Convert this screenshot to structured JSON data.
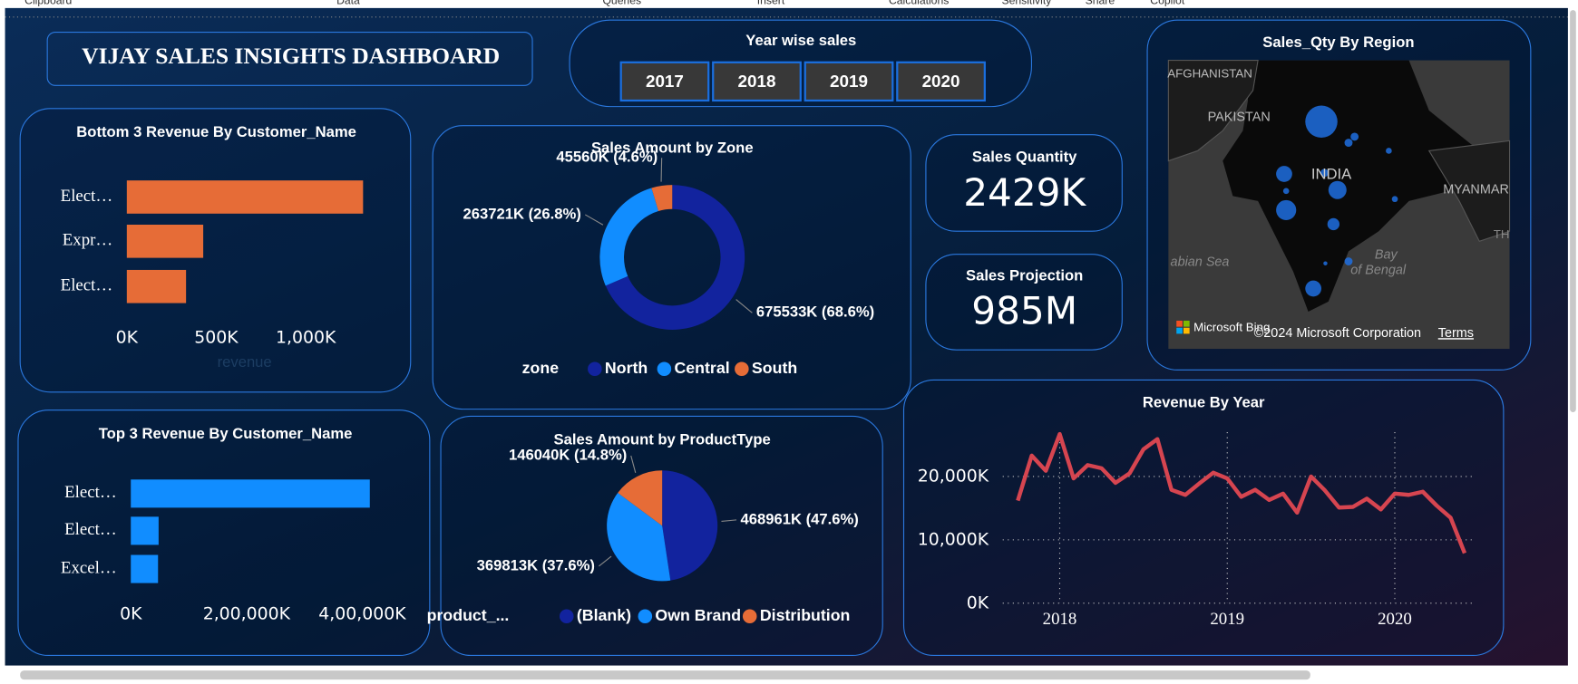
{
  "ribbon": [
    "Clipboard",
    "Data",
    "Queries",
    "Insert",
    "Calculations",
    "Sensitivity",
    "Share",
    "Copilot"
  ],
  "header": {
    "title": "VIJAY SALES INSIGHTS DASHBOARD"
  },
  "slicer": {
    "title": "Year wise sales",
    "items": [
      "2017",
      "2018",
      "2019",
      "2020"
    ]
  },
  "cards": [
    {
      "title": "Sales Quantity",
      "value": "2429K"
    },
    {
      "title": "Sales Projection",
      "value": "985M"
    }
  ],
  "map": {
    "title": "Sales_Qty By Region",
    "labels": [
      "AFGHANISTAN",
      "PAKISTAN",
      "INDIA",
      "MYANMAR",
      "abian Sea",
      "Bay",
      "of Bengal",
      "TH"
    ],
    "attribution": "Microsoft Bing",
    "copyright": "©2024 Microsoft Corporation",
    "terms": "Terms"
  },
  "chart_data": [
    {
      "type": "bar",
      "orientation": "horizontal",
      "title": "Bottom 3 Revenue By Customer_Name",
      "x_label": "revenue",
      "categories": [
        "Elect…",
        "Expr…",
        "Elect…"
      ],
      "values": [
        1320,
        427,
        331
      ],
      "color": "#e66c37",
      "xlim": [
        0,
        1400
      ],
      "xticks": [
        {
          "value": 0,
          "label": "0K"
        },
        {
          "value": 500,
          "label": "500K"
        },
        {
          "value": 1000,
          "label": "1,000K"
        }
      ]
    },
    {
      "type": "bar",
      "orientation": "horizontal",
      "title": "Top 3 Revenue By Customer_Name",
      "categories": [
        "Elect…",
        "Elect…",
        "Excel…"
      ],
      "values": [
        413000,
        48000,
        47000
      ],
      "color": "#118dff",
      "xlim": [
        0,
        420000
      ],
      "xticks": [
        {
          "value": 0,
          "label": "0K"
        },
        {
          "value": 200000,
          "label": "2,00,000K"
        },
        {
          "value": 400000,
          "label": "4,00,000K"
        }
      ]
    },
    {
      "type": "donut",
      "title": "Sales Amount by Zone",
      "legend_title": "zone",
      "categories": [
        "North",
        "Central",
        "South"
      ],
      "values": [
        675533,
        263721,
        45560
      ],
      "value_labels": [
        "675533K (68.6%)",
        "263721K (26.8%)",
        "45560K (4.6%)"
      ],
      "colors": [
        "#12239e",
        "#118dff",
        "#e66c37"
      ]
    },
    {
      "type": "pie",
      "title": "Sales Amount by ProductType",
      "legend_title": "product_...",
      "categories": [
        "(Blank)",
        "Own Brand",
        "Distribution"
      ],
      "values": [
        468961,
        369813,
        146040
      ],
      "value_labels": [
        "468961K (47.6%)",
        "369813K (37.6%)",
        "146040K (14.8%)"
      ],
      "colors": [
        "#12239e",
        "#118dff",
        "#e66c37"
      ]
    },
    {
      "type": "line",
      "title": "Revenue By Year",
      "color": "#d64550",
      "grid": true,
      "x": [
        2017.75,
        2017.833,
        2017.917,
        2018,
        2018.083,
        2018.167,
        2018.25,
        2018.333,
        2018.417,
        2018.5,
        2018.583,
        2018.667,
        2018.75,
        2018.833,
        2018.917,
        2019,
        2019.083,
        2019.167,
        2019.25,
        2019.333,
        2019.417,
        2019.5,
        2019.583,
        2019.667,
        2019.75,
        2019.833,
        2019.917,
        2020,
        2020.083,
        2020.167,
        2020.25,
        2020.333,
        2020.417
      ],
      "values": [
        16200,
        23300,
        20900,
        26700,
        19700,
        21800,
        21300,
        19000,
        20500,
        24300,
        25900,
        17900,
        17100,
        18900,
        20600,
        19700,
        16800,
        17900,
        16300,
        17300,
        14300,
        20000,
        17800,
        15100,
        15200,
        16500,
        14800,
        17300,
        17100,
        17600,
        15400,
        13500,
        7900
      ],
      "xlim": [
        2017.6,
        2020.5
      ],
      "xticks": [
        2018,
        2019,
        2020
      ],
      "ylim": [
        0,
        27000
      ],
      "yticks": [
        {
          "value": 0,
          "label": "0K"
        },
        {
          "value": 10000,
          "label": "10,000K"
        },
        {
          "value": 20000,
          "label": "20,000K"
        }
      ]
    }
  ]
}
